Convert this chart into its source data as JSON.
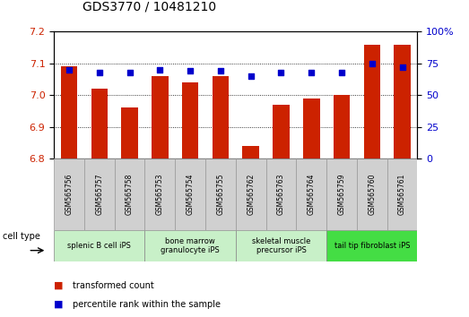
{
  "title": "GDS3770 / 10481210",
  "samples": [
    "GSM565756",
    "GSM565757",
    "GSM565758",
    "GSM565753",
    "GSM565754",
    "GSM565755",
    "GSM565762",
    "GSM565763",
    "GSM565764",
    "GSM565759",
    "GSM565760",
    "GSM565761"
  ],
  "bar_values": [
    7.09,
    7.02,
    6.96,
    7.06,
    7.04,
    7.06,
    6.84,
    6.97,
    6.99,
    7.0,
    7.16,
    7.16
  ],
  "percentile_values": [
    70,
    68,
    68,
    70,
    69,
    69,
    65,
    68,
    68,
    68,
    75,
    72
  ],
  "ylim_left": [
    6.8,
    7.2
  ],
  "ylim_right": [
    0,
    100
  ],
  "yticks_left": [
    6.8,
    6.9,
    7.0,
    7.1,
    7.2
  ],
  "yticks_right": [
    0,
    25,
    50,
    75,
    100
  ],
  "bar_color": "#cc2200",
  "dot_color": "#0000cc",
  "background_color": "#ffffff",
  "cell_types": [
    {
      "label": "splenic B cell iPS",
      "start": 0,
      "end": 3,
      "color": "#c8f0c8"
    },
    {
      "label": "bone marrow\ngranulocyte iPS",
      "start": 3,
      "end": 6,
      "color": "#c8f0c8"
    },
    {
      "label": "skeletal muscle\nprecursor iPS",
      "start": 6,
      "end": 9,
      "color": "#c8f0c8"
    },
    {
      "label": "tail tip fibroblast iPS",
      "start": 9,
      "end": 12,
      "color": "#44dd44"
    }
  ],
  "legend_items": [
    {
      "label": "transformed count",
      "color": "#cc2200"
    },
    {
      "label": "percentile rank within the sample",
      "color": "#0000cc"
    }
  ],
  "grid_color": "#000000",
  "tick_label_color_left": "#cc2200",
  "tick_label_color_right": "#0000cc",
  "xlabel": "cell type",
  "bar_width": 0.55,
  "title_fontsize": 10
}
